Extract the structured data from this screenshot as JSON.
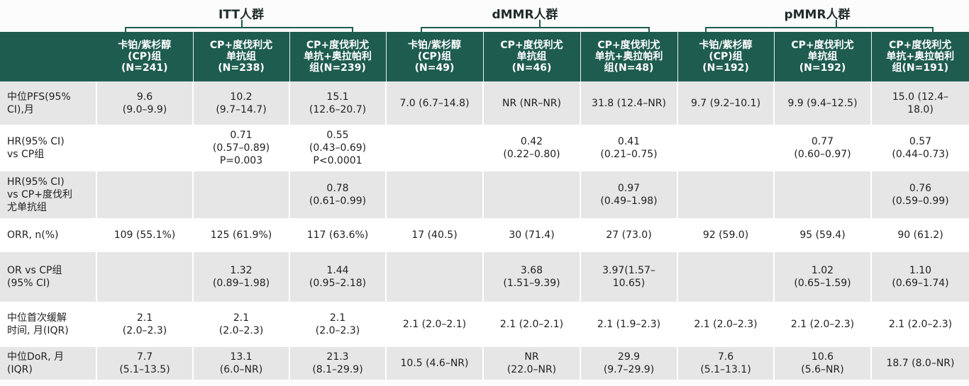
{
  "groups": [
    {
      "label": "ITT人群"
    },
    {
      "label": "dMMR人群"
    },
    {
      "label": "pMMR人群"
    }
  ],
  "columns": [
    "卡铂/紫杉醇\n(CP)组\n(N=241)",
    "CP+度伐利尤\n单抗组\n(N=238)",
    "CP+度伐利尤\n单抗+奥拉帕利\n组(N=239)",
    "卡铂/紫杉醇\n(CP)组\n(N=49)",
    "CP+度伐利尤\n单抗组\n(N=46)",
    "CP+度伐利尤\n单抗+奥拉帕利\n组(N=48)",
    "卡铂/紫杉醇\n(CP)组\n(N=192)",
    "CP+度伐利尤\n单抗组\n(N=192)",
    "CP+度伐利尤\n单抗+奥拉帕利\n组(N=191)"
  ],
  "rows": [
    {
      "label": "中位PFS(95%\nCI),月",
      "cells": [
        "9.6\n(9.0–9.9)",
        "10.2\n(9.7–14.7)",
        "15.1\n(12.6–20.7)",
        "7.0 (6.7–14.8)",
        "NR (NR–NR)",
        "31.8 (12.4–NR)",
        "9.7 (9.2–10.1)",
        "9.9 (9.4–12.5)",
        "15.0 (12.4–\n18.0)"
      ]
    },
    {
      "label": "HR(95% CI)\nvs CP组",
      "cells": [
        "",
        "0.71\n(0.57–0.89)\nP=0.003",
        "0.55\n(0.43–0.69)\nP<0.0001",
        "",
        "0.42\n(0.22–0.80)",
        "0.41\n(0.21–0.75)",
        "",
        "0.77\n(0.60–0.97)",
        "0.57\n(0.44–0.73)"
      ]
    },
    {
      "label": "HR(95% CI)\nvs CP+度伐利\n尤单抗组",
      "cells": [
        "",
        "",
        "0.78\n(0.61–0.99)",
        "",
        "",
        "0.97\n(0.49–1.98)",
        "",
        "",
        "0.76\n(0.59–0.99)"
      ]
    },
    {
      "label": "ORR, n(%)",
      "cells": [
        "109 (55.1%)",
        "125 (61.9%)",
        "117 (63.6%)",
        "17 (40.5)",
        "30 (71.4)",
        "27 (73.0)",
        "92 (59.0)",
        "95 (59.4)",
        "90 (61.2)"
      ]
    },
    {
      "label": "OR vs CP组\n(95% CI)",
      "cells": [
        "",
        "1.32\n(0.89–1.98)",
        "1.44\n(0.95–2.18)",
        "",
        "3.68\n(1.51–9.39)",
        "3.97(1.57–\n10.65)",
        "",
        "1.02\n(0.65–1.59)",
        "1.10\n(0.69–1.74)"
      ]
    },
    {
      "label": "中位首次缓解\n时间, 月(IQR)",
      "cells": [
        "2.1\n(2.0–2.3)",
        "2.1\n(2.0–2.3)",
        "2.1\n(2.0–2.3)",
        "2.1 (2.0–2.1)",
        "2.1 (2.0–2.1)",
        "2.1 (1.9–2.3)",
        "2.1 (2.0–2.3)",
        "2.1 (2.0–2.3)",
        "2.1 (2.0–2.3)"
      ]
    },
    {
      "label": "中位DoR, 月\n(IQR)",
      "cells": [
        "7.7\n(5.1–13.5)",
        "13.1\n(6.0–NR)",
        "21.3\n(8.1–29.9)",
        "10.5 (4.6–NR)",
        "NR\n(22.0–NR)",
        "29.9\n(9.7–29.9)",
        "7.6\n(5.1–13.1)",
        "10.6\n(5.6–NR)",
        "18.7 (8.0–NR)"
      ]
    }
  ]
}
